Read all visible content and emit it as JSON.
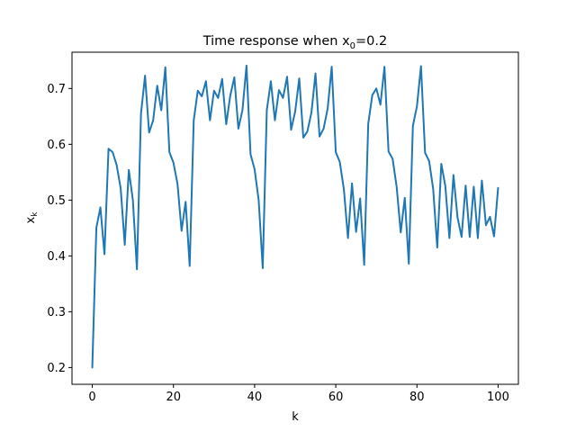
{
  "chart_data": {
    "type": "line",
    "title": {
      "main": "Time response when x",
      "sub": "0",
      "suffix": "=0.2"
    },
    "xlabel": "k",
    "ylabel": {
      "main": "x",
      "sub": "k"
    },
    "xlim": [
      -5,
      105
    ],
    "ylim": [
      0.17,
      0.765
    ],
    "xticks": [
      0,
      20,
      40,
      60,
      80,
      100
    ],
    "yticks": [
      0.2,
      0.3,
      0.4,
      0.5,
      0.6,
      0.7
    ],
    "grid": false,
    "series": [
      {
        "color": "#1f77b4",
        "x": [
          0,
          1,
          2,
          3,
          4,
          5,
          6,
          7,
          8,
          9,
          10,
          11,
          12,
          13,
          14,
          15,
          16,
          17,
          18,
          19,
          20,
          21,
          22,
          23,
          24,
          25,
          26,
          27,
          28,
          29,
          30,
          31,
          32,
          33,
          34,
          35,
          36,
          37,
          38,
          39,
          40,
          41,
          42,
          43,
          44,
          45,
          46,
          47,
          48,
          49,
          50,
          51,
          52,
          53,
          54,
          55,
          56,
          57,
          58,
          59,
          60,
          61,
          62,
          63,
          64,
          65,
          66,
          67,
          68,
          69,
          70,
          71,
          72,
          73,
          74,
          75,
          76,
          77,
          78,
          79,
          80,
          81,
          82,
          83,
          84,
          85,
          86,
          87,
          88,
          89,
          90,
          91,
          92,
          93,
          94,
          95,
          96,
          97,
          98,
          99,
          100
        ],
        "values": [
          0.2,
          0.45,
          0.487,
          0.403,
          0.592,
          0.586,
          0.563,
          0.521,
          0.42,
          0.554,
          0.5,
          0.376,
          0.655,
          0.723,
          0.621,
          0.643,
          0.705,
          0.661,
          0.738,
          0.586,
          0.567,
          0.529,
          0.445,
          0.497,
          0.382,
          0.643,
          0.696,
          0.686,
          0.713,
          0.643,
          0.696,
          0.683,
          0.717,
          0.636,
          0.687,
          0.72,
          0.628,
          0.661,
          0.741,
          0.582,
          0.555,
          0.5,
          0.378,
          0.661,
          0.713,
          0.643,
          0.697,
          0.683,
          0.721,
          0.626,
          0.659,
          0.718,
          0.612,
          0.623,
          0.657,
          0.727,
          0.614,
          0.628,
          0.664,
          0.739,
          0.586,
          0.568,
          0.519,
          0.432,
          0.53,
          0.443,
          0.503,
          0.384,
          0.637,
          0.688,
          0.7,
          0.671,
          0.739,
          0.587,
          0.574,
          0.524,
          0.442,
          0.504,
          0.386,
          0.633,
          0.668,
          0.74,
          0.585,
          0.57,
          0.52,
          0.415,
          0.565,
          0.525,
          0.432,
          0.545,
          0.469,
          0.434,
          0.526,
          0.434,
          0.524,
          0.432,
          0.535,
          0.455,
          0.47,
          0.435,
          0.522
        ]
      }
    ]
  }
}
